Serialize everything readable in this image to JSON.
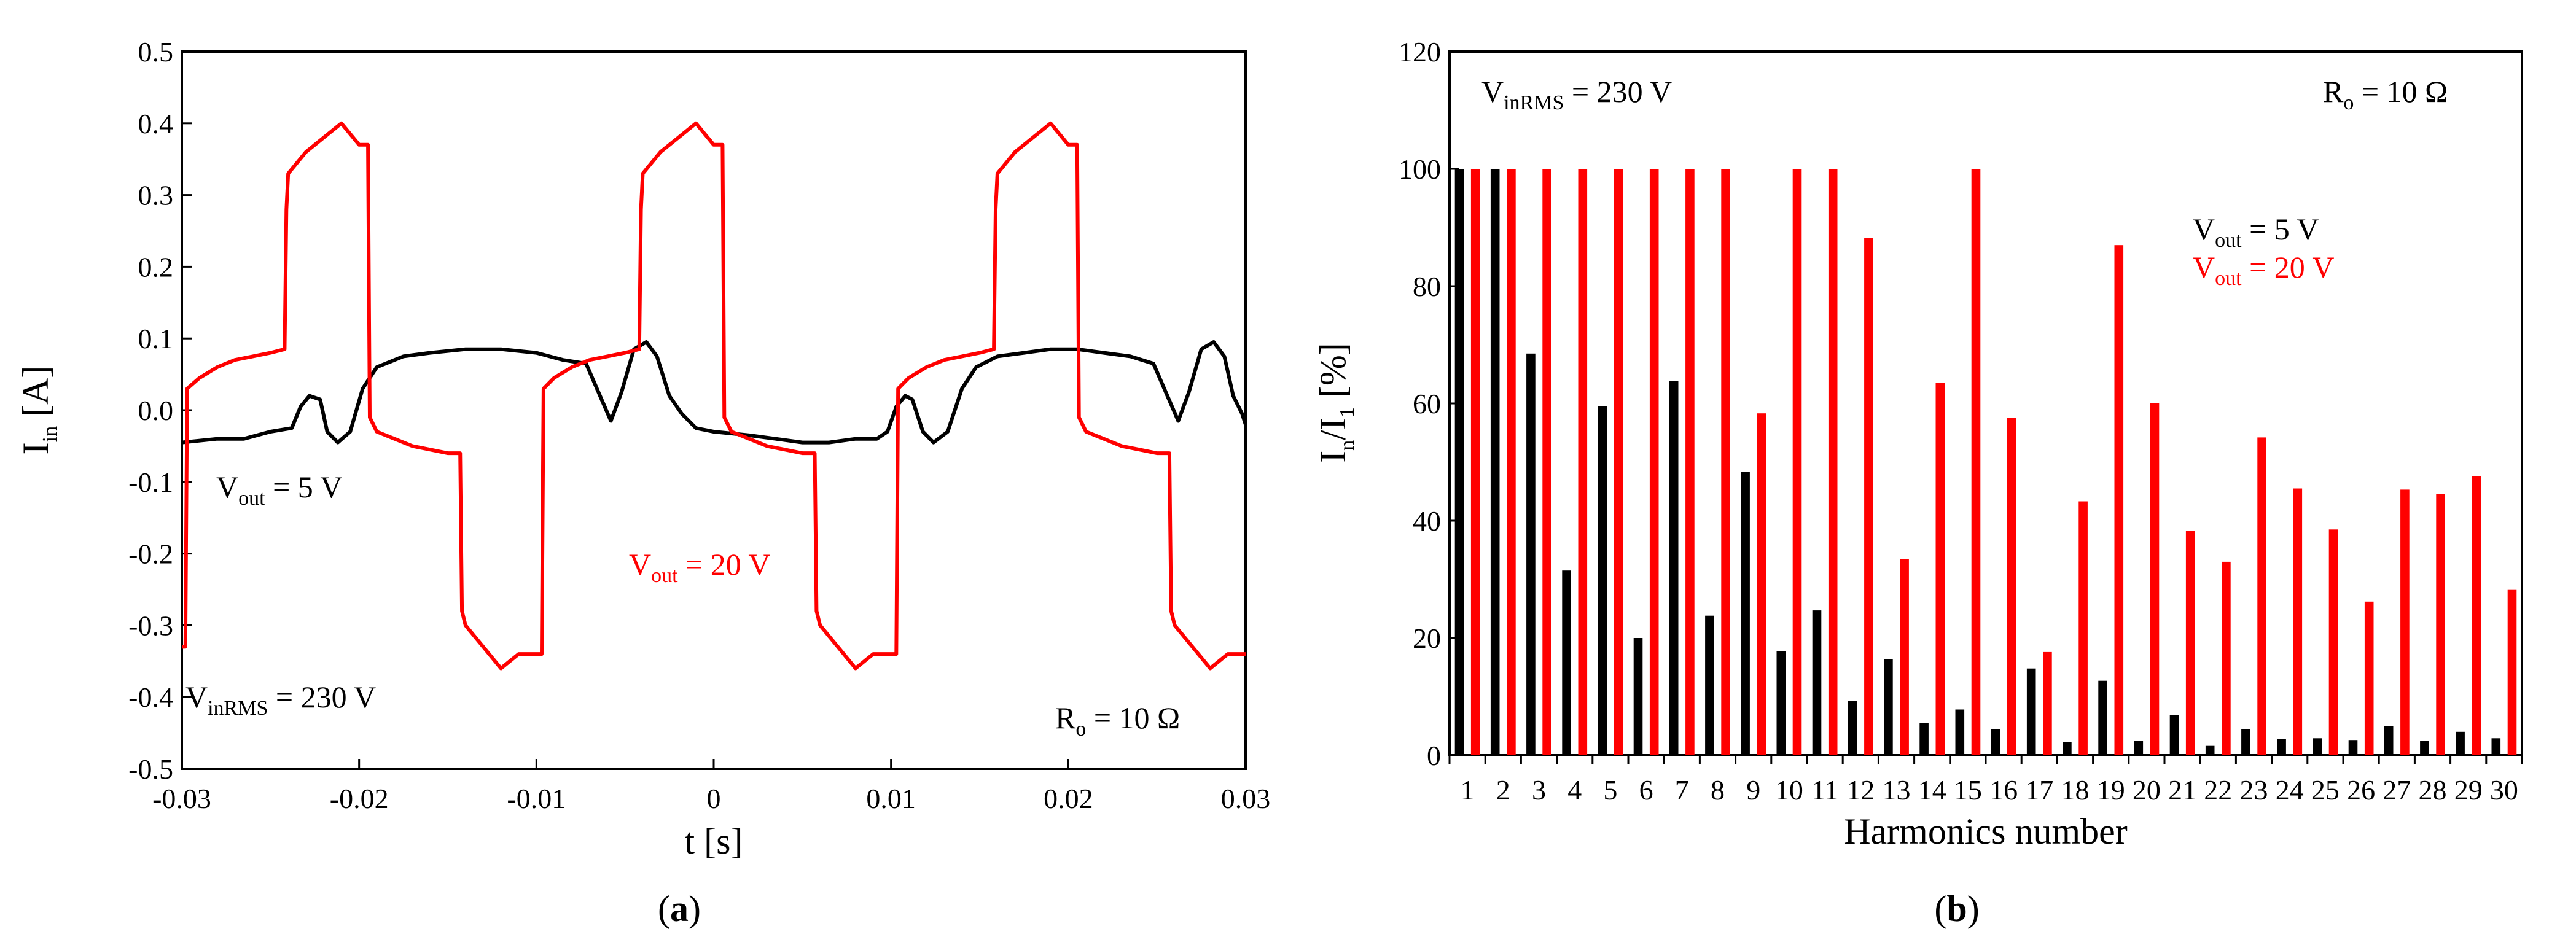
{
  "colors": {
    "black": "#000000",
    "red": "#ff0000"
  },
  "chart_data": [
    {
      "panel": "a",
      "type": "line",
      "caption": {
        "open": "(",
        "letter": "a",
        "close": ")"
      },
      "xlabel": "t [s]",
      "ylabel": {
        "main": "I",
        "sub": "in",
        "unit": " [A]"
      },
      "xlim": [
        -0.03,
        0.03
      ],
      "ylim": [
        -0.5,
        0.5
      ],
      "xticks": [
        -0.03,
        -0.02,
        -0.01,
        0,
        0.01,
        0.02,
        0.03
      ],
      "xtick_labels": [
        "-0.03",
        "-0.02",
        "-0.01",
        "0",
        "0.01",
        "0.02",
        "0.03"
      ],
      "yticks": [
        -0.5,
        -0.4,
        -0.3,
        -0.2,
        -0.1,
        0,
        0.1,
        0.2,
        0.3,
        0.4,
        0.5
      ],
      "ytick_labels": [
        "-0.5",
        "-0.4",
        "-0.3",
        "-0.2",
        "-0.1",
        "0.0",
        "0.1",
        "0.2",
        "0.3",
        "0.4",
        "0.5"
      ],
      "annotations": [
        {
          "id": "vout5",
          "main": "V",
          "sub": "out",
          "rest": " = 5 V",
          "color": "#000000"
        },
        {
          "id": "vout20",
          "main": "V",
          "sub": "out",
          "rest": " = 20 V",
          "color": "#ff0000"
        },
        {
          "id": "vin",
          "main": "V",
          "sub": "inRMS",
          "rest": " = 230 V",
          "color": "#000000"
        },
        {
          "id": "ro",
          "main": "R",
          "sub": "o",
          "rest": " = 10 Ω",
          "color": "#000000"
        }
      ],
      "series": [
        {
          "name": "Vout = 5 V",
          "color": "#000000",
          "points": [
            [
              -0.03,
              -0.045
            ],
            [
              -0.028,
              -0.04
            ],
            [
              -0.0265,
              -0.04
            ],
            [
              -0.025,
              -0.03
            ],
            [
              -0.0238,
              -0.025
            ],
            [
              -0.0233,
              0.005
            ],
            [
              -0.0228,
              0.02
            ],
            [
              -0.0222,
              0.015
            ],
            [
              -0.0218,
              -0.03
            ],
            [
              -0.0212,
              -0.045
            ],
            [
              -0.0205,
              -0.03
            ],
            [
              -0.0198,
              0.03
            ],
            [
              -0.019,
              0.06
            ],
            [
              -0.0175,
              0.075
            ],
            [
              -0.016,
              0.08
            ],
            [
              -0.014,
              0.085
            ],
            [
              -0.012,
              0.085
            ],
            [
              -0.01,
              0.08
            ],
            [
              -0.0085,
              0.07
            ],
            [
              -0.0072,
              0.065
            ],
            [
              -0.0065,
              0.025
            ],
            [
              -0.0058,
              -0.015
            ],
            [
              -0.0052,
              0.025
            ],
            [
              -0.0045,
              0.085
            ],
            [
              -0.0038,
              0.095
            ],
            [
              -0.0032,
              0.075
            ],
            [
              -0.0025,
              0.02
            ],
            [
              -0.0018,
              -0.005
            ],
            [
              -0.001,
              -0.025
            ],
            [
              0.0,
              -0.03
            ],
            [
              0.002,
              -0.035
            ],
            [
              0.0035,
              -0.04
            ],
            [
              0.005,
              -0.045
            ],
            [
              0.0065,
              -0.045
            ],
            [
              0.008,
              -0.04
            ],
            [
              0.0092,
              -0.04
            ],
            [
              0.0098,
              -0.03
            ],
            [
              0.0103,
              0.005
            ],
            [
              0.0108,
              0.02
            ],
            [
              0.0112,
              0.015
            ],
            [
              0.0118,
              -0.03
            ],
            [
              0.0124,
              -0.045
            ],
            [
              0.0132,
              -0.03
            ],
            [
              0.014,
              0.03
            ],
            [
              0.0148,
              0.06
            ],
            [
              0.016,
              0.075
            ],
            [
              0.0175,
              0.08
            ],
            [
              0.019,
              0.085
            ],
            [
              0.0205,
              0.085
            ],
            [
              0.022,
              0.08
            ],
            [
              0.0235,
              0.075
            ],
            [
              0.0248,
              0.065
            ],
            [
              0.0255,
              0.025
            ],
            [
              0.0262,
              -0.015
            ],
            [
              0.0268,
              0.025
            ],
            [
              0.0275,
              0.085
            ],
            [
              0.0282,
              0.095
            ],
            [
              0.0288,
              0.075
            ],
            [
              0.0293,
              0.02
            ],
            [
              0.0298,
              -0.005
            ],
            [
              0.03,
              -0.02
            ]
          ]
        },
        {
          "name": "Vout = 20 V",
          "color": "#ff0000",
          "points": [
            [
              -0.03,
              -0.33
            ],
            [
              -0.0298,
              -0.33
            ],
            [
              -0.0297,
              0.03
            ],
            [
              -0.029,
              0.045
            ],
            [
              -0.028,
              0.06
            ],
            [
              -0.027,
              0.07
            ],
            [
              -0.026,
              0.075
            ],
            [
              -0.025,
              0.08
            ],
            [
              -0.0242,
              0.085
            ],
            [
              -0.0241,
              0.28
            ],
            [
              -0.024,
              0.33
            ],
            [
              -0.023,
              0.36
            ],
            [
              -0.022,
              0.38
            ],
            [
              -0.021,
              0.4
            ],
            [
              -0.02,
              0.37
            ],
            [
              -0.0195,
              0.37
            ],
            [
              -0.0194,
              -0.01
            ],
            [
              -0.019,
              -0.03
            ],
            [
              -0.018,
              -0.04
            ],
            [
              -0.017,
              -0.05
            ],
            [
              -0.016,
              -0.055
            ],
            [
              -0.015,
              -0.06
            ],
            [
              -0.0143,
              -0.06
            ],
            [
              -0.0142,
              -0.28
            ],
            [
              -0.014,
              -0.3
            ],
            [
              -0.013,
              -0.33
            ],
            [
              -0.012,
              -0.36
            ],
            [
              -0.011,
              -0.34
            ],
            [
              -0.0105,
              -0.34
            ],
            [
              -0.0097,
              -0.34
            ],
            [
              -0.0096,
              0.03
            ],
            [
              -0.009,
              0.045
            ],
            [
              -0.008,
              0.06
            ],
            [
              -0.007,
              0.07
            ],
            [
              -0.006,
              0.075
            ],
            [
              -0.005,
              0.08
            ],
            [
              -0.0042,
              0.085
            ],
            [
              -0.0041,
              0.28
            ],
            [
              -0.004,
              0.33
            ],
            [
              -0.003,
              0.36
            ],
            [
              -0.002,
              0.38
            ],
            [
              -0.001,
              0.4
            ],
            [
              0.0,
              0.37
            ],
            [
              0.0005,
              0.37
            ],
            [
              0.0006,
              -0.01
            ],
            [
              0.001,
              -0.03
            ],
            [
              0.002,
              -0.04
            ],
            [
              0.003,
              -0.05
            ],
            [
              0.004,
              -0.055
            ],
            [
              0.005,
              -0.06
            ],
            [
              0.0057,
              -0.06
            ],
            [
              0.0058,
              -0.28
            ],
            [
              0.006,
              -0.3
            ],
            [
              0.007,
              -0.33
            ],
            [
              0.008,
              -0.36
            ],
            [
              0.009,
              -0.34
            ],
            [
              0.0095,
              -0.34
            ],
            [
              0.0103,
              -0.34
            ],
            [
              0.0104,
              0.03
            ],
            [
              0.011,
              0.045
            ],
            [
              0.012,
              0.06
            ],
            [
              0.013,
              0.07
            ],
            [
              0.014,
              0.075
            ],
            [
              0.015,
              0.08
            ],
            [
              0.0158,
              0.085
            ],
            [
              0.0159,
              0.28
            ],
            [
              0.016,
              0.33
            ],
            [
              0.017,
              0.36
            ],
            [
              0.018,
              0.38
            ],
            [
              0.019,
              0.4
            ],
            [
              0.02,
              0.37
            ],
            [
              0.0205,
              0.37
            ],
            [
              0.0206,
              -0.01
            ],
            [
              0.021,
              -0.03
            ],
            [
              0.022,
              -0.04
            ],
            [
              0.023,
              -0.05
            ],
            [
              0.024,
              -0.055
            ],
            [
              0.025,
              -0.06
            ],
            [
              0.0257,
              -0.06
            ],
            [
              0.0258,
              -0.28
            ],
            [
              0.026,
              -0.3
            ],
            [
              0.027,
              -0.33
            ],
            [
              0.028,
              -0.36
            ],
            [
              0.029,
              -0.34
            ],
            [
              0.0295,
              -0.34
            ],
            [
              0.03,
              -0.34
            ]
          ]
        }
      ]
    },
    {
      "panel": "b",
      "type": "bar",
      "caption": {
        "open": "(",
        "letter": "b",
        "close": ")"
      },
      "xlabel": "Harmonics  number",
      "ylabel": {
        "n": "I",
        "nsub": "n",
        "slash": "/I",
        "one": "1",
        "unit": " [%]"
      },
      "ylim": [
        0,
        120
      ],
      "yticks": [
        0,
        20,
        40,
        60,
        80,
        100,
        120
      ],
      "ytick_labels": [
        "0",
        "20",
        "40",
        "60",
        "80",
        "100",
        "120"
      ],
      "categories": [
        "1",
        "2",
        "3",
        "4",
        "5",
        "6",
        "7",
        "8",
        "9",
        "10",
        "11",
        "12",
        "13",
        "14",
        "15",
        "16",
        "17",
        "18",
        "19",
        "20",
        "21",
        "22",
        "23",
        "24",
        "25",
        "26",
        "27",
        "28",
        "29",
        "30"
      ],
      "annotations": [
        {
          "id": "vin",
          "main": "V",
          "sub": "inRMS",
          "rest": " = 230 V",
          "color": "#000000"
        },
        {
          "id": "ro",
          "main": "R",
          "sub": "o",
          "rest": " = 10 Ω",
          "color": "#000000"
        },
        {
          "id": "vout5",
          "main": "V",
          "sub": "out",
          "rest": " = 5 V",
          "color": "#000000"
        },
        {
          "id": "vout20",
          "main": "V",
          "sub": "out",
          "rest": " = 20 V",
          "color": "#ff0000"
        }
      ],
      "series": [
        {
          "name": "Vout = 5 V",
          "color": "#000000",
          "values": [
            100,
            100,
            68.5,
            31.5,
            59.5,
            20,
            63.8,
            23.8,
            48.3,
            17.7,
            24.7,
            9.3,
            16.4,
            5.5,
            7.8,
            4.5,
            14.8,
            2.2,
            12.7,
            2.5,
            6.9,
            1.6,
            4.5,
            2.8,
            2.9,
            2.6,
            5,
            2.5,
            4,
            2.9
          ]
        },
        {
          "name": "Vout = 20 V",
          "color": "#ff0000",
          "values": [
            100,
            100,
            100,
            100,
            100,
            100,
            100,
            100,
            58.3,
            100,
            100,
            88.2,
            33.5,
            63.5,
            100,
            57.5,
            17.6,
            43.3,
            87,
            60,
            38.3,
            33,
            54.2,
            45.5,
            38.5,
            26.2,
            45.3,
            44.6,
            47.6,
            28.2
          ]
        }
      ]
    }
  ]
}
